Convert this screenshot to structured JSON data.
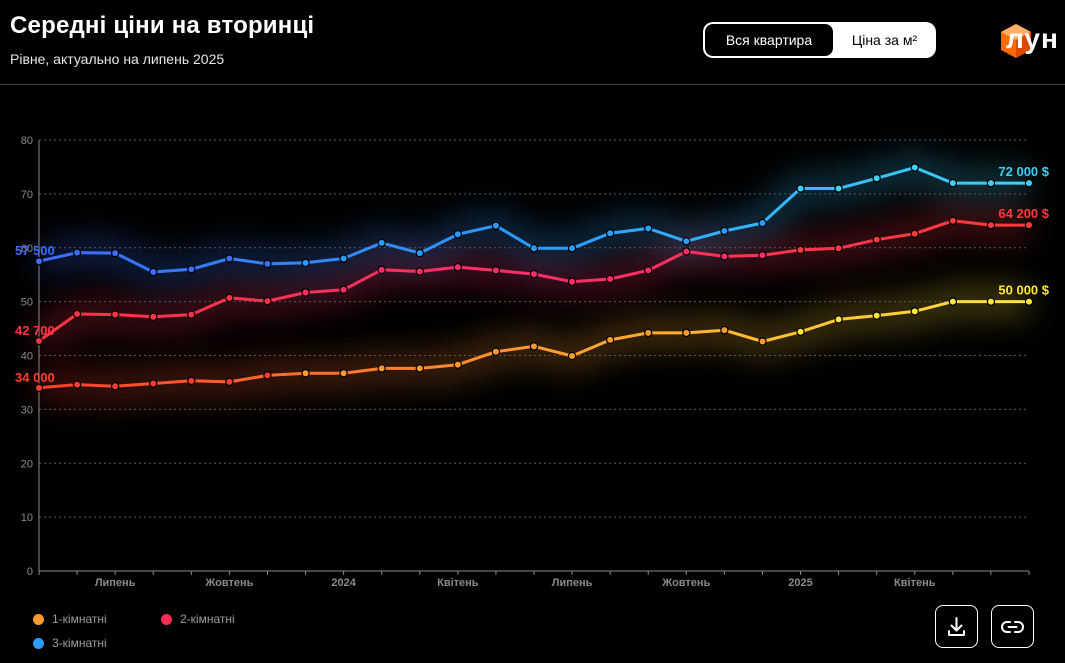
{
  "header": {
    "title": "Середні ціни на вторинці",
    "subtitle": "Рівне, актуально на липень 2025",
    "toggle": {
      "options": [
        "Вся квартира",
        "Ціна за м²"
      ],
      "selected": "Вся квартира"
    },
    "logo_text": "лун",
    "logo_color": "#ff6a00"
  },
  "actions": {
    "download_icon": "download-icon",
    "link_icon": "link-icon"
  },
  "chart_data": {
    "type": "line",
    "ylim": [
      0,
      80
    ],
    "yticks": [
      0,
      10,
      20,
      30,
      40,
      50,
      60,
      70,
      80
    ],
    "x": [
      "2023-05",
      "2023-06",
      "2023-07",
      "2023-08",
      "2023-09",
      "2023-10",
      "2023-11",
      "2023-12",
      "2024-01",
      "2024-02",
      "2024-03",
      "2024-04",
      "2024-05",
      "2024-06",
      "2024-07",
      "2024-08",
      "2024-09",
      "2024-10",
      "2024-11",
      "2024-12",
      "2025-01",
      "2025-02",
      "2025-03",
      "2025-04",
      "2025-05",
      "2025-06",
      "2025-07"
    ],
    "xtick_labels": [
      {
        "x": "2023-07",
        "label": "Липень"
      },
      {
        "x": "2023-10",
        "label": "Жовтень"
      },
      {
        "x": "2024-01",
        "label": "2024"
      },
      {
        "x": "2024-04",
        "label": "Квітень"
      },
      {
        "x": "2024-07",
        "label": "Липень"
      },
      {
        "x": "2024-10",
        "label": "Жовтень"
      },
      {
        "x": "2025-01",
        "label": "2025"
      },
      {
        "x": "2025-04",
        "label": "Квітень"
      }
    ],
    "grid": true,
    "series": [
      {
        "name": "1-кімнатні",
        "colors": [
          "#ff3d2e",
          "#ff9a2e",
          "#ffe53a"
        ],
        "values": [
          34.0,
          34.6,
          34.3,
          34.8,
          35.3,
          35.1,
          36.3,
          36.7,
          36.7,
          37.6,
          37.6,
          38.3,
          40.7,
          41.7,
          39.9,
          42.9,
          44.2,
          44.2,
          44.7,
          42.6,
          44.4,
          46.7,
          47.4,
          48.2,
          50.0,
          50.0,
          50.0
        ],
        "start_label": "34 000",
        "end_label": "50 000 $"
      },
      {
        "name": "2-кімнатні",
        "colors": [
          "#ff3344",
          "#ff2d6a",
          "#ff3a3a"
        ],
        "values": [
          42.7,
          47.7,
          47.6,
          47.2,
          47.6,
          50.7,
          50.1,
          51.7,
          52.2,
          55.9,
          55.6,
          56.4,
          55.8,
          55.1,
          53.7,
          54.2,
          55.8,
          59.3,
          58.4,
          58.6,
          59.6,
          59.9,
          61.5,
          62.6,
          65.0,
          64.2,
          64.2
        ],
        "start_label": "42 700",
        "end_label": "64 200 $"
      },
      {
        "name": "3-кімнатні",
        "colors": [
          "#3b6cff",
          "#2a9cff",
          "#3fd0f5"
        ],
        "values": [
          57.5,
          59.1,
          59.0,
          55.5,
          56.0,
          58.0,
          57.0,
          57.2,
          58.0,
          60.9,
          59.0,
          62.5,
          64.1,
          59.9,
          59.9,
          62.7,
          63.6,
          61.2,
          63.1,
          64.6,
          71.0,
          71.0,
          72.9,
          74.9,
          72.0,
          72.0,
          72.0
        ],
        "start_label": "57 500",
        "end_label": "72 000 $"
      }
    ]
  }
}
